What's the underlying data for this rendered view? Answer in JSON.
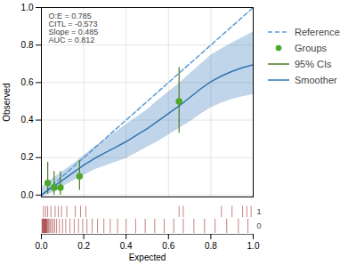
{
  "chart_data": {
    "type": "calibration",
    "xlabel": "Expected",
    "ylabel": "Observed",
    "annotation": "O:E = 0.785\nCITL = -0.573\nSlope = 0.485\nAUC = 0.812",
    "xlim": [
      0,
      1
    ],
    "ylim": [
      -0.01,
      1
    ],
    "xticks": [
      {
        "value": 0,
        "label": "0.0"
      },
      0.2,
      0.4,
      0.6,
      0.8,
      {
        "value": 1,
        "label": "1.0"
      }
    ],
    "yticks": [
      {
        "value": 0,
        "label": "0.0"
      },
      0.2,
      0.4,
      0.6,
      0.8,
      {
        "value": 1,
        "label": "1.0"
      }
    ],
    "grid": true,
    "legend": "right",
    "series": [
      {
        "name": "Reference",
        "type": "line",
        "color": "#5b9bd5",
        "line_style": "dashed",
        "x": [
          0,
          1
        ],
        "values": [
          0,
          1
        ]
      },
      {
        "name": "Groups",
        "type": "scatter",
        "color": "#4ea72a",
        "marker": "circle",
        "x": [
          0.03,
          0.06,
          0.09,
          0.18,
          0.65
        ],
        "values": [
          0.065,
          0.04,
          0.04,
          0.1,
          0.5
        ]
      },
      {
        "name": "95% CIs",
        "type": "errorbar",
        "color": "#4a7a25",
        "x": [
          0.03,
          0.06,
          0.09,
          0.18,
          0.65
        ],
        "low": [
          0.005,
          0.0,
          0.0,
          0.025,
          0.33
        ],
        "high": [
          0.175,
          0.125,
          0.125,
          0.185,
          0.68
        ]
      },
      {
        "name": "Smoother",
        "type": "line",
        "color": "#2e75b6",
        "line_style": "solid",
        "x": [
          0.0,
          0.05,
          0.1,
          0.15,
          0.2,
          0.25,
          0.3,
          0.35,
          0.4,
          0.45,
          0.5,
          0.55,
          0.6,
          0.65,
          0.7,
          0.75,
          0.8,
          0.85,
          0.9,
          0.95,
          1.0
        ],
        "values": [
          0.0,
          0.04,
          0.08,
          0.12,
          0.16,
          0.195,
          0.225,
          0.255,
          0.285,
          0.32,
          0.355,
          0.395,
          0.435,
          0.475,
          0.52,
          0.565,
          0.605,
          0.635,
          0.66,
          0.68,
          0.695
        ],
        "ci_low": [
          -0.01,
          0.01,
          0.045,
          0.075,
          0.105,
          0.135,
          0.155,
          0.175,
          0.195,
          0.225,
          0.255,
          0.285,
          0.32,
          0.355,
          0.39,
          0.43,
          0.465,
          0.49,
          0.51,
          0.525,
          0.535
        ],
        "ci_high": [
          0.04,
          0.085,
          0.125,
          0.165,
          0.21,
          0.255,
          0.295,
          0.335,
          0.375,
          0.415,
          0.455,
          0.505,
          0.55,
          0.595,
          0.645,
          0.695,
          0.745,
          0.78,
          0.81,
          0.84,
          0.87
        ]
      }
    ],
    "rug": [
      {
        "label": "1",
        "color": "#9e3030",
        "x": [
          0.01,
          0.02,
          0.03,
          0.045,
          0.065,
          0.08,
          0.095,
          0.12,
          0.16,
          0.185,
          0.21,
          0.65,
          0.67,
          0.85,
          0.9,
          0.95,
          0.97,
          0.99
        ]
      },
      {
        "label": "0",
        "color": "#9e3030",
        "x": [
          0.003,
          0.005,
          0.007,
          0.009,
          0.011,
          0.013,
          0.015,
          0.017,
          0.019,
          0.021,
          0.023,
          0.025,
          0.028,
          0.032,
          0.036,
          0.041,
          0.048,
          0.055,
          0.063,
          0.072,
          0.085,
          0.1,
          0.115,
          0.135,
          0.155,
          0.175,
          0.195,
          0.215,
          0.24,
          0.265,
          0.295,
          0.325,
          0.36,
          0.4,
          0.445,
          0.49,
          0.535,
          0.58,
          0.625,
          0.67,
          0.72,
          0.77,
          0.82,
          0.875,
          0.93,
          0.975
        ]
      }
    ]
  }
}
